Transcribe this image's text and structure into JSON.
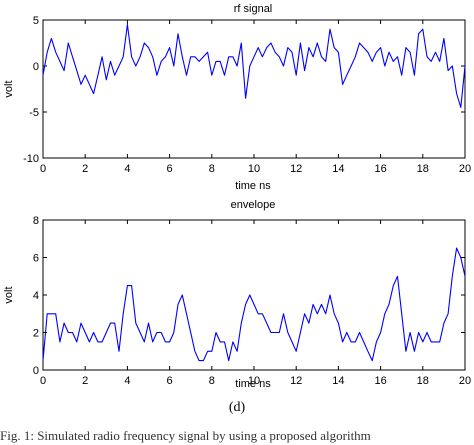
{
  "figure": {
    "sub_label": "(d)",
    "caption": "Fig. 1: Simulated radio frequency signal by using a proposed algorithm"
  },
  "chart_data": [
    {
      "type": "line",
      "title": "rf signal",
      "xlabel": "time ns",
      "ylabel": "volt",
      "xlim": [
        0,
        20
      ],
      "ylim": [
        -10,
        5
      ],
      "xticks": [
        0,
        2,
        4,
        6,
        8,
        10,
        12,
        14,
        16,
        18,
        20
      ],
      "yticks": [
        -10,
        -5,
        0,
        5
      ],
      "grid": false,
      "line_color": "#0000ff",
      "series": [
        {
          "x": [
            0,
            0.2,
            0.4,
            0.6,
            0.8,
            1.0,
            1.2,
            1.4,
            1.6,
            1.8,
            2.0,
            2.2,
            2.4,
            2.6,
            2.8,
            3.0,
            3.2,
            3.4,
            3.6,
            3.8,
            4.0,
            4.2,
            4.4,
            4.6,
            4.8,
            5.0,
            5.2,
            5.4,
            5.6,
            5.8,
            6.0,
            6.2,
            6.4,
            6.6,
            6.8,
            7.0,
            7.2,
            7.4,
            7.6,
            7.8,
            8.0,
            8.2,
            8.4,
            8.6,
            8.8,
            9.0,
            9.2,
            9.4,
            9.6,
            9.8,
            10.0,
            10.2,
            10.4,
            10.6,
            10.8,
            11.0,
            11.2,
            11.4,
            11.6,
            11.8,
            12.0,
            12.2,
            12.4,
            12.6,
            12.8,
            13.0,
            13.2,
            13.4,
            13.6,
            13.8,
            14.0,
            14.2,
            14.4,
            14.6,
            14.8,
            15.0,
            15.2,
            15.4,
            15.6,
            15.8,
            16.0,
            16.2,
            16.4,
            16.6,
            16.8,
            17.0,
            17.2,
            17.4,
            17.6,
            17.8,
            18.0,
            18.2,
            18.4,
            18.6,
            18.8,
            19.0,
            19.2,
            19.4,
            19.6,
            19.8,
            20.0
          ],
          "y": [
            -1,
            1.5,
            3,
            1.5,
            0.5,
            -0.5,
            2.5,
            1,
            -0.5,
            -2,
            -1,
            -2,
            -3,
            -1,
            1,
            -1.5,
            0.5,
            -1,
            0,
            1,
            4.5,
            1,
            0,
            1,
            2.5,
            2,
            1,
            -1,
            0.5,
            1,
            2,
            0,
            3.5,
            1,
            -1,
            1,
            1,
            0.5,
            1,
            1.5,
            -1,
            0.5,
            0.5,
            -1,
            1,
            1,
            0,
            2.5,
            -3.5,
            0,
            1,
            2,
            1,
            2,
            2.5,
            1.5,
            1,
            0,
            2,
            1.5,
            -1,
            2.5,
            -0.5,
            2,
            1,
            2.5,
            1,
            0.5,
            4,
            2,
            1.5,
            -2,
            -1,
            0,
            1,
            2.5,
            2,
            1.5,
            0.5,
            1.5,
            2,
            0,
            1.5,
            0.5,
            1,
            -1,
            2,
            1.5,
            -1,
            3.5,
            4,
            1,
            0.5,
            1.5,
            0.5,
            3,
            -0.5,
            0,
            -3,
            -4.5,
            0
          ]
        }
      ]
    },
    {
      "type": "line",
      "title": "envelope",
      "xlabel": "time ns",
      "ylabel": "volt",
      "xlim": [
        0,
        20
      ],
      "ylim": [
        0,
        8
      ],
      "xticks": [
        0,
        2,
        4,
        6,
        8,
        10,
        12,
        14,
        16,
        18,
        20
      ],
      "yticks": [
        0,
        2,
        4,
        6,
        8
      ],
      "grid": false,
      "line_color": "#0000ff",
      "series": [
        {
          "x": [
            0,
            0.2,
            0.4,
            0.6,
            0.8,
            1.0,
            1.2,
            1.4,
            1.6,
            1.8,
            2.0,
            2.2,
            2.4,
            2.6,
            2.8,
            3.0,
            3.2,
            3.4,
            3.6,
            3.8,
            4.0,
            4.2,
            4.4,
            4.6,
            4.8,
            5.0,
            5.2,
            5.4,
            5.6,
            5.8,
            6.0,
            6.2,
            6.4,
            6.6,
            6.8,
            7.0,
            7.2,
            7.4,
            7.6,
            7.8,
            8.0,
            8.2,
            8.4,
            8.6,
            8.8,
            9.0,
            9.2,
            9.4,
            9.6,
            9.8,
            10.0,
            10.2,
            10.4,
            10.6,
            10.8,
            11.0,
            11.2,
            11.4,
            11.6,
            11.8,
            12.0,
            12.2,
            12.4,
            12.6,
            12.8,
            13.0,
            13.2,
            13.4,
            13.6,
            13.8,
            14.0,
            14.2,
            14.4,
            14.6,
            14.8,
            15.0,
            15.2,
            15.4,
            15.6,
            15.8,
            16.0,
            16.2,
            16.4,
            16.6,
            16.8,
            17.0,
            17.2,
            17.4,
            17.6,
            17.8,
            18.0,
            18.2,
            18.4,
            18.6,
            18.8,
            19.0,
            19.2,
            19.4,
            19.6,
            19.8,
            20.0
          ],
          "y": [
            0.5,
            3,
            3,
            3,
            1.5,
            2.5,
            2,
            2,
            1.5,
            2.5,
            2,
            1.5,
            2,
            1.5,
            1.5,
            2,
            2.5,
            2.5,
            1,
            3,
            4.5,
            4.5,
            2.5,
            2,
            1.5,
            2.5,
            1.5,
            2,
            2,
            1.5,
            1.5,
            2,
            3.5,
            4,
            3,
            2,
            1,
            0.5,
            0.5,
            1,
            1,
            2,
            1.5,
            1.5,
            0.5,
            1.5,
            1,
            2.5,
            3.5,
            4,
            3.5,
            3,
            3,
            2.5,
            2,
            2,
            2,
            3,
            2,
            1.5,
            1,
            2,
            3,
            2.5,
            3.5,
            3,
            3.5,
            3,
            4,
            3,
            2.5,
            1.5,
            2,
            1.5,
            1.5,
            2,
            1.5,
            1,
            0.5,
            1.5,
            2,
            3,
            3.5,
            4.5,
            5,
            3,
            1,
            2,
            1,
            2,
            1.5,
            2,
            1.5,
            1.5,
            1.5,
            2.5,
            3,
            5,
            6.5,
            6,
            5
          ]
        }
      ]
    }
  ]
}
